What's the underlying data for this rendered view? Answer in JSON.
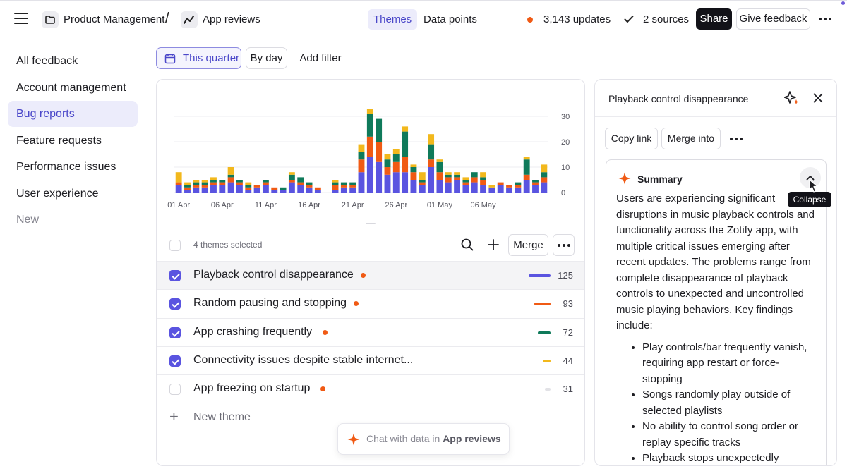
{
  "header": {
    "breadcrumb": [
      {
        "label": "Product Management",
        "icon": "folder-icon"
      },
      {
        "label": "App reviews",
        "icon": "trend-line-icon"
      }
    ],
    "breadcrumb_separator": "/",
    "views": [
      {
        "label": "Themes",
        "active": true
      },
      {
        "label": "Data points",
        "active": false
      }
    ],
    "updates": "3,143 updates",
    "sources": "2 sources",
    "share_label": "Share",
    "feedback_label": "Give feedback"
  },
  "sidebar": {
    "items": [
      {
        "label": "All feedback",
        "active": false
      },
      {
        "label": "Account management",
        "active": false
      },
      {
        "label": "Bug reports",
        "active": true
      },
      {
        "label": "Feature requests",
        "active": false
      },
      {
        "label": "Performance issues",
        "active": false
      },
      {
        "label": "User experience",
        "active": false
      },
      {
        "label": "New",
        "active": false,
        "muted": true
      }
    ]
  },
  "filters": {
    "quarter": "This quarter",
    "granularity": "By day",
    "add": "Add filter"
  },
  "chart_data": {
    "type": "bar",
    "stacked": true,
    "x_tick_labels": [
      "01 Apr",
      "06 Apr",
      "11 Apr",
      "16 Apr",
      "21 Apr",
      "26 Apr",
      "01 May",
      "06 May"
    ],
    "y_ticks": [
      0,
      10,
      20,
      30
    ],
    "ylim": [
      0,
      32
    ],
    "grid": true,
    "colors": [
      "#5a54e0",
      "#f05a14",
      "#0f7a5a",
      "#f2b81c"
    ],
    "stacks": [
      [
        3,
        1,
        0,
        4
      ],
      [
        1,
        1,
        1,
        1
      ],
      [
        2,
        1,
        1,
        1
      ],
      [
        2,
        1,
        1,
        1
      ],
      [
        3,
        1,
        1,
        1
      ],
      [
        3,
        1,
        1,
        0
      ],
      [
        4,
        2,
        1,
        3
      ],
      [
        3,
        1,
        1,
        0
      ],
      [
        1,
        1,
        1,
        1
      ],
      [
        2,
        1,
        0,
        0
      ],
      [
        3,
        1,
        1,
        0
      ],
      [
        1,
        1,
        0,
        0
      ],
      [
        1,
        0,
        1,
        0
      ],
      [
        4,
        1,
        2,
        1
      ],
      [
        3,
        1,
        2,
        0
      ],
      [
        2,
        1,
        1,
        0
      ],
      [
        1,
        1,
        0,
        0
      ],
      [
        0,
        0,
        0,
        0
      ],
      [
        1,
        2,
        1,
        1
      ],
      [
        2,
        1,
        1,
        0
      ],
      [
        2,
        1,
        1,
        0
      ],
      [
        8,
        5,
        3,
        3
      ],
      [
        14,
        8,
        9,
        2
      ],
      [
        12,
        8,
        9,
        0
      ],
      [
        7,
        3,
        3,
        2
      ],
      [
        8,
        4,
        3,
        2
      ],
      [
        8,
        6,
        10,
        2
      ],
      [
        5,
        3,
        2,
        1
      ],
      [
        3,
        1,
        1,
        3
      ],
      [
        10,
        3,
        6,
        4
      ],
      [
        5,
        3,
        4,
        1
      ],
      [
        4,
        2,
        1,
        1
      ],
      [
        5,
        1,
        1,
        1
      ],
      [
        3,
        1,
        1,
        1
      ],
      [
        4,
        2,
        2,
        0
      ],
      [
        3,
        2,
        1,
        2
      ],
      [
        2,
        0,
        0,
        1
      ],
      [
        3,
        1,
        0,
        0
      ],
      [
        2,
        1,
        0,
        0
      ],
      [
        2,
        1,
        1,
        0
      ],
      [
        5,
        2,
        6,
        1
      ],
      [
        3,
        1,
        1,
        0
      ],
      [
        4,
        2,
        2,
        3
      ]
    ]
  },
  "themes": {
    "selected_text": "4 themes selected",
    "merge_label": "Merge",
    "rows": [
      {
        "name": "Playback control disappearance",
        "count": "125",
        "checked": true,
        "bar_color": "#5a54e0",
        "bar_fraction": 1.0
      },
      {
        "name": "Random pausing and stopping",
        "count": "93",
        "checked": true,
        "bar_color": "#f05a14",
        "bar_fraction": 0.74
      },
      {
        "name": "App crashing frequently",
        "count": "72",
        "checked": true,
        "bar_color": "#0f7a5a",
        "bar_fraction": 0.58
      },
      {
        "name": "Connectivity issues despite stable internet...",
        "count": "44",
        "checked": true,
        "bar_color": "#f2b81c",
        "bar_fraction": 0.35
      },
      {
        "name": "App freezing on startup",
        "count": "31",
        "checked": false,
        "bar_color": "#e2e2e6",
        "bar_fraction": 0.25
      }
    ],
    "new_theme_label": "New theme"
  },
  "chat": {
    "prefix": "Chat with data in",
    "target": "App reviews"
  },
  "detail": {
    "title": "Playback control disappearance",
    "copy_link": "Copy link",
    "merge_into": "Merge into",
    "summary_heading": "Summary",
    "summary_intro": "Users are experiencing significant disruptions in music playback controls and functionality across the Zotify app, with multiple critical issues emerging after recent updates. The problems range from complete disappearance of playback controls to unexpected and uncontrolled music playing behaviors. Key findings include:",
    "bullets": [
      "Play controls/bar frequently vanish, requiring app restart or force-stopping",
      "Songs randomly play outside of selected playlists",
      "No ability to control song order or replay specific tracks",
      "Playback stops unexpectedly"
    ],
    "collapse_tooltip": "Collapse"
  }
}
